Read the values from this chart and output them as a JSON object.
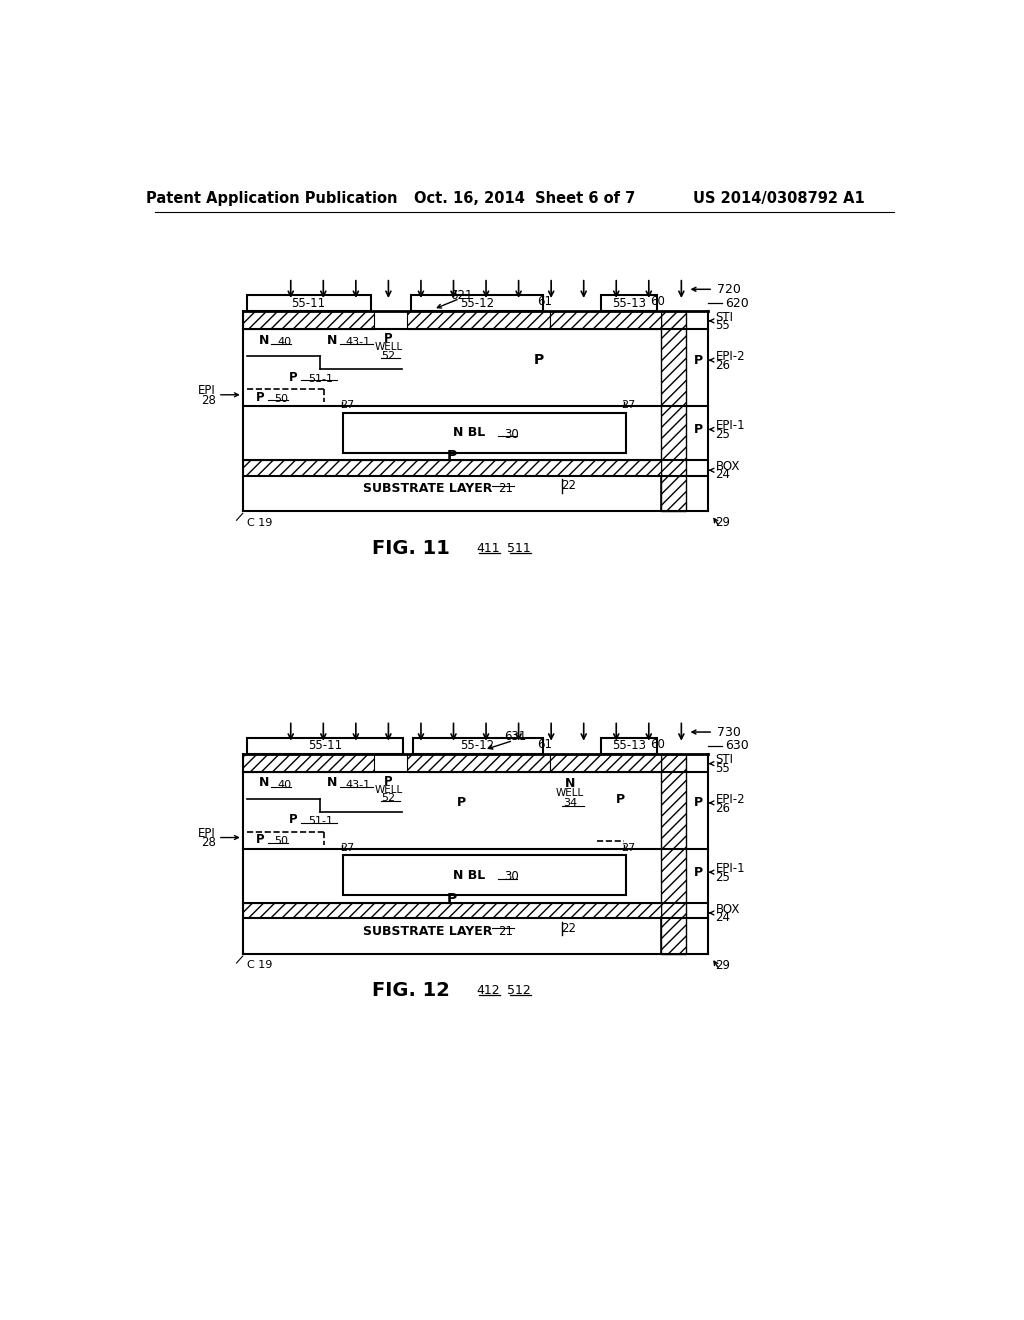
{
  "header_left": "Patent Application Publication",
  "header_mid": "Oct. 16, 2014  Sheet 6 of 7",
  "header_right": "US 2014/0308792 A1",
  "background": "#ffffff",
  "fig1_caption": "FIG. 11",
  "fig2_caption": "FIG. 12"
}
